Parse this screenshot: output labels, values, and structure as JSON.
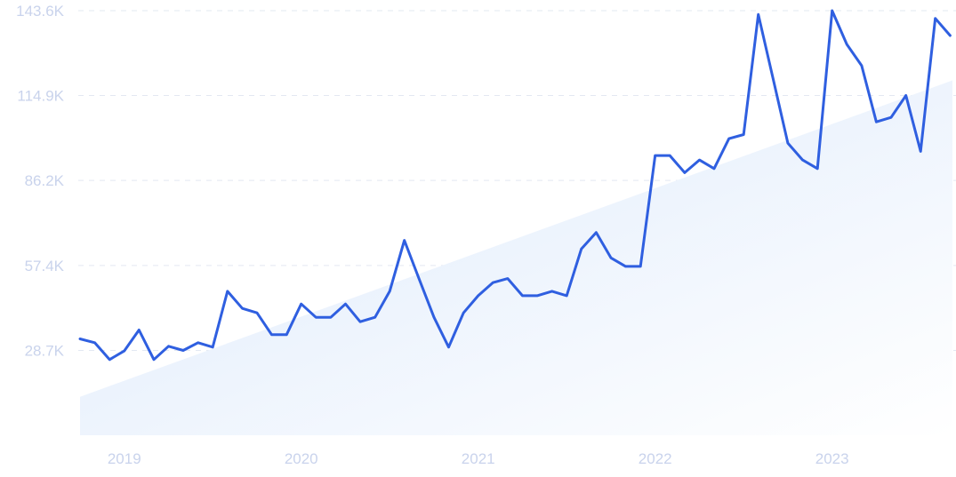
{
  "chart_data": {
    "type": "line",
    "title": "",
    "xlabel": "",
    "ylabel": "",
    "grid": true,
    "legend": "none",
    "y_ticks": [
      "28.7K",
      "57.4K",
      "86.2K",
      "114.9K",
      "143.6K"
    ],
    "y_tick_values": [
      28700,
      57400,
      86200,
      114900,
      143600
    ],
    "ylim": [
      0,
      143600
    ],
    "x_ticks": [
      "2019",
      "2020",
      "2021",
      "2022",
      "2023"
    ],
    "x_tick_values": [
      2019.0,
      2020.0,
      2021.0,
      2022.0,
      2023.0
    ],
    "xlim": [
      2018.75,
      2023.68
    ],
    "colors": {
      "line": "#2f5fe0",
      "trend_fill_top": "#dce9fb",
      "trend_fill_bottom": "#ffffff",
      "grid": "#e3e8f2",
      "tick_text": "#c9d3ec"
    },
    "series": [
      {
        "x": [
          2018.75,
          2018.833,
          2018.917,
          2019.0,
          2019.083,
          2019.167,
          2019.25,
          2019.333,
          2019.417,
          2019.5,
          2019.583,
          2019.667,
          2019.75,
          2019.833,
          2019.917,
          2020.0,
          2020.083,
          2020.167,
          2020.25,
          2020.333,
          2020.417,
          2020.5,
          2020.583,
          2020.667,
          2020.75,
          2020.833,
          2020.917,
          2021.0,
          2021.083,
          2021.167,
          2021.25,
          2021.333,
          2021.417,
          2021.5,
          2021.583,
          2021.667,
          2021.75,
          2021.833,
          2021.917,
          2022.0,
          2022.083,
          2022.167,
          2022.25,
          2022.333,
          2022.417,
          2022.5,
          2022.583,
          2022.667,
          2022.75,
          2022.833,
          2022.917,
          2023.0,
          2023.083,
          2023.167,
          2023.25,
          2023.333,
          2023.417,
          2023.5,
          2023.583,
          2023.667
        ],
        "values": [
          32600,
          31300,
          25600,
          28500,
          35600,
          25600,
          30100,
          28700,
          31300,
          29800,
          48700,
          42900,
          41400,
          34000,
          34000,
          44400,
          39900,
          39900,
          44400,
          38400,
          39900,
          48700,
          65900,
          52700,
          39900,
          29800,
          41400,
          47200,
          51600,
          53000,
          47200,
          47200,
          48700,
          47200,
          63000,
          68600,
          60000,
          57100,
          57100,
          94600,
          94600,
          88800,
          93100,
          90200,
          100300,
          101700,
          142300,
          120500,
          98800,
          93100,
          90200,
          143600,
          132200,
          125000,
          106000,
          107500,
          114900,
          96000,
          141000,
          135200
        ]
      }
    ],
    "trend": {
      "x": [
        2018.75,
        2023.68
      ],
      "values": [
        13000,
        120000
      ]
    }
  }
}
